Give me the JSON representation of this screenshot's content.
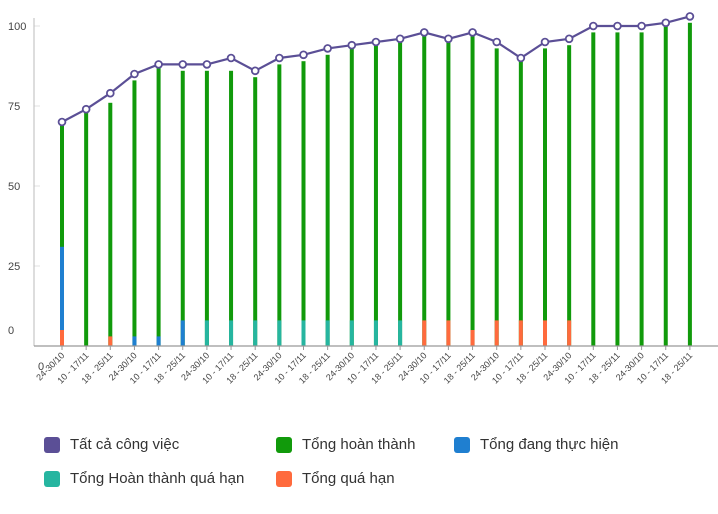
{
  "chart_data": {
    "type": "bar",
    "categories": [
      "24-30/10",
      "10 - 17/11",
      "18 - 25/11",
      "24-30/10",
      "10 - 17/11",
      "18 - 25/11",
      "24-30/10",
      "10 - 17/11",
      "18 - 25/11",
      "24-30/10",
      "10 - 17/11",
      "18 - 25/11",
      "24-30/10",
      "10 - 17/11",
      "18 - 25/11",
      "24-30/10",
      "10 - 17/11",
      "18 - 25/11",
      "24-30/10",
      "10 - 17/11",
      "18 - 25/11",
      "24-30/10",
      "10 - 17/11",
      "18 - 25/11",
      "24-30/10",
      "10 - 17/11",
      "18 - 25/11"
    ],
    "y_ticks": [
      "100",
      "75",
      "50",
      "25",
      "0"
    ],
    "x_origin_label": "0",
    "ylim": [
      0,
      100
    ],
    "series": [
      {
        "name": "Tất cả công việc",
        "kind": "line",
        "color": "#5B4F96",
        "values": [
          70,
          74,
          79,
          85,
          88,
          88,
          88,
          90,
          86,
          90,
          91,
          93,
          94,
          95,
          96,
          98,
          96,
          98,
          95,
          90,
          95,
          96,
          100,
          100,
          100,
          101,
          103
        ]
      },
      {
        "name": "Tổng hoàn thành",
        "kind": "bar",
        "color": "#119A0B",
        "values": [
          69,
          73,
          76,
          83,
          87,
          86,
          86,
          86,
          84,
          88,
          89,
          91,
          93,
          94,
          95,
          97,
          95,
          97,
          93,
          89,
          93,
          94,
          98,
          98,
          98,
          100,
          101
        ]
      },
      {
        "name": "Tổng đang thực hiện",
        "kind": "bar",
        "color": "#1F7FD0",
        "values": [
          31,
          0,
          0,
          3,
          3,
          8,
          0,
          0,
          0,
          0,
          0,
          0,
          0,
          0,
          0,
          0,
          0,
          0,
          0,
          0,
          0,
          0,
          0,
          0,
          0,
          0,
          0
        ]
      },
      {
        "name": "Tổng Hoàn thành quá hạn",
        "kind": "bar",
        "color": "#26B5A0",
        "values": [
          0,
          0,
          0,
          0,
          0,
          0,
          8,
          8,
          8,
          8,
          8,
          8,
          8,
          8,
          8,
          0,
          0,
          0,
          0,
          0,
          0,
          0,
          0,
          0,
          0,
          0,
          0
        ]
      },
      {
        "name": "Tổng quá hạn",
        "kind": "bar",
        "color": "#FF6A3D",
        "values": [
          5,
          0,
          3,
          0,
          0,
          0,
          0,
          0,
          0,
          0,
          0,
          0,
          0,
          0,
          0,
          8,
          8,
          5,
          8,
          8,
          8,
          8,
          0,
          0,
          0,
          0,
          0
        ]
      }
    ]
  }
}
